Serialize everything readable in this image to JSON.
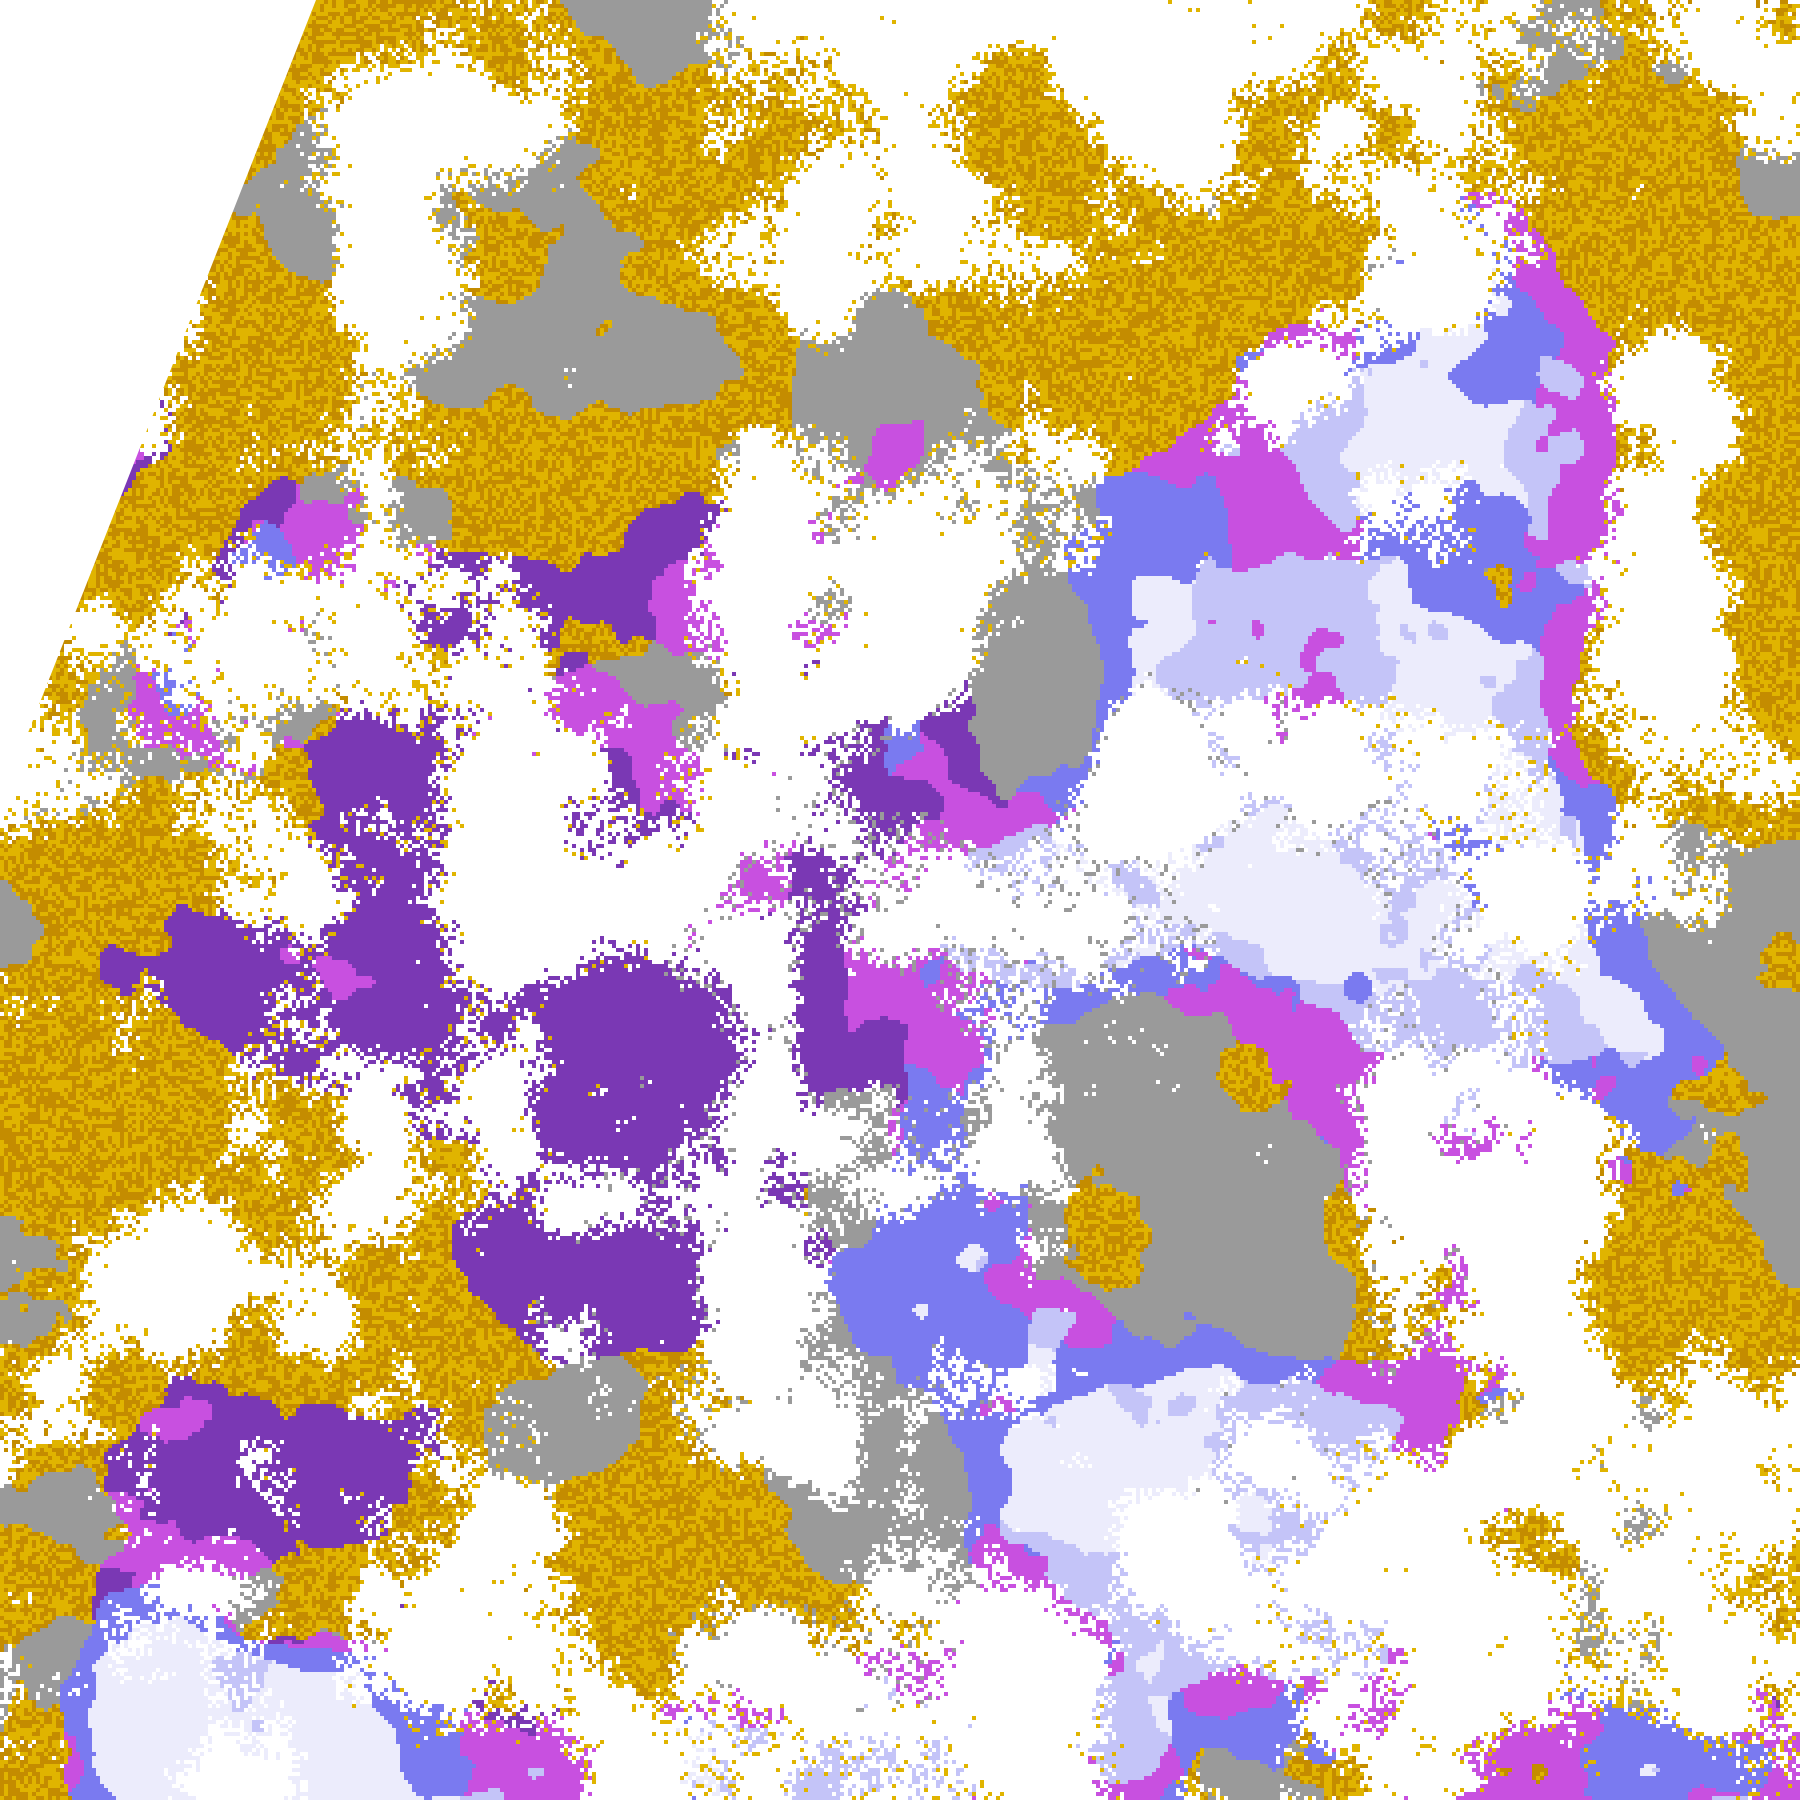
{
  "map": {
    "kind": "cloud-classification-raster",
    "palette": {
      "clear": "#ffffff",
      "gold": "#e0b400",
      "dark_gold": "#c48c00",
      "purple": "#7a38b4",
      "magenta": "#c850e0",
      "violet_blue": "#7a7af0",
      "lavender": "#c4c4f8",
      "pale": "#ececfc",
      "gray": "#9a9a9a"
    },
    "no_data_color": "#ffffff"
  }
}
